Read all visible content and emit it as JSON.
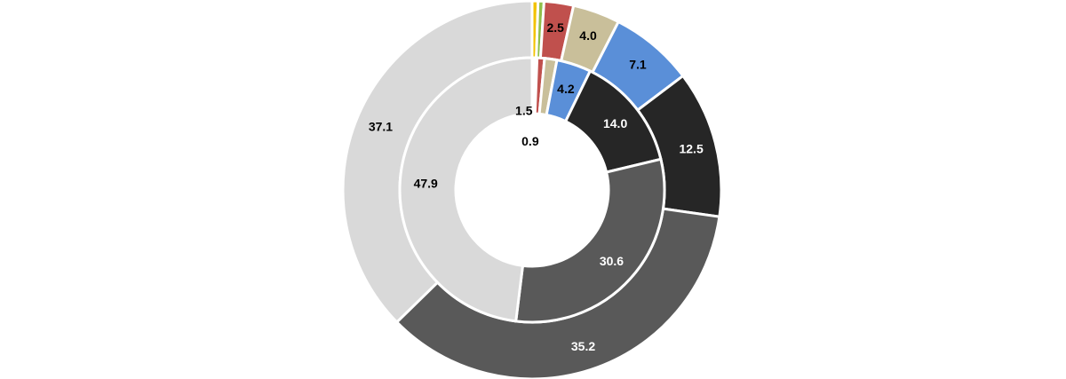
{
  "chart_data": {
    "type": "donut",
    "title": "",
    "legend": "none",
    "rings": [
      {
        "name": "",
        "ring": "outer",
        "slices": [
          {
            "value": 0.5,
            "color": "#f2c200",
            "label": ""
          },
          {
            "value": 0.5,
            "color": "#8fbf4a",
            "label": ""
          },
          {
            "value": 2.5,
            "color": "#c0504d",
            "label": "2.5"
          },
          {
            "value": 4.0,
            "color": "#c9bf9a",
            "label": "4.0"
          },
          {
            "value": 7.1,
            "color": "#5a8fd8",
            "label": "7.1"
          },
          {
            "value": 12.5,
            "color": "#262626",
            "label": "12.5"
          },
          {
            "value": 35.2,
            "color": "#595959",
            "label": "35.2"
          },
          {
            "value": 37.1,
            "color": "#d9d9d9",
            "label": "37.1"
          }
        ]
      },
      {
        "name": "",
        "ring": "inner",
        "slices": [
          {
            "value": 0.3,
            "color": "#f2c200",
            "label": ""
          },
          {
            "value": 0.3,
            "color": "#8fbf4a",
            "label": ""
          },
          {
            "value": 0.9,
            "color": "#c0504d",
            "label": "0.9"
          },
          {
            "value": 1.5,
            "color": "#c9bf9a",
            "label": "1.5"
          },
          {
            "value": 4.2,
            "color": "#5a8fd8",
            "label": "4.2"
          },
          {
            "value": 14.0,
            "color": "#262626",
            "label": "14.0"
          },
          {
            "value": 30.6,
            "color": "#595959",
            "label": "30.6"
          },
          {
            "value": 47.9,
            "color": "#d9d9d9",
            "label": "47.9"
          }
        ]
      }
    ]
  }
}
